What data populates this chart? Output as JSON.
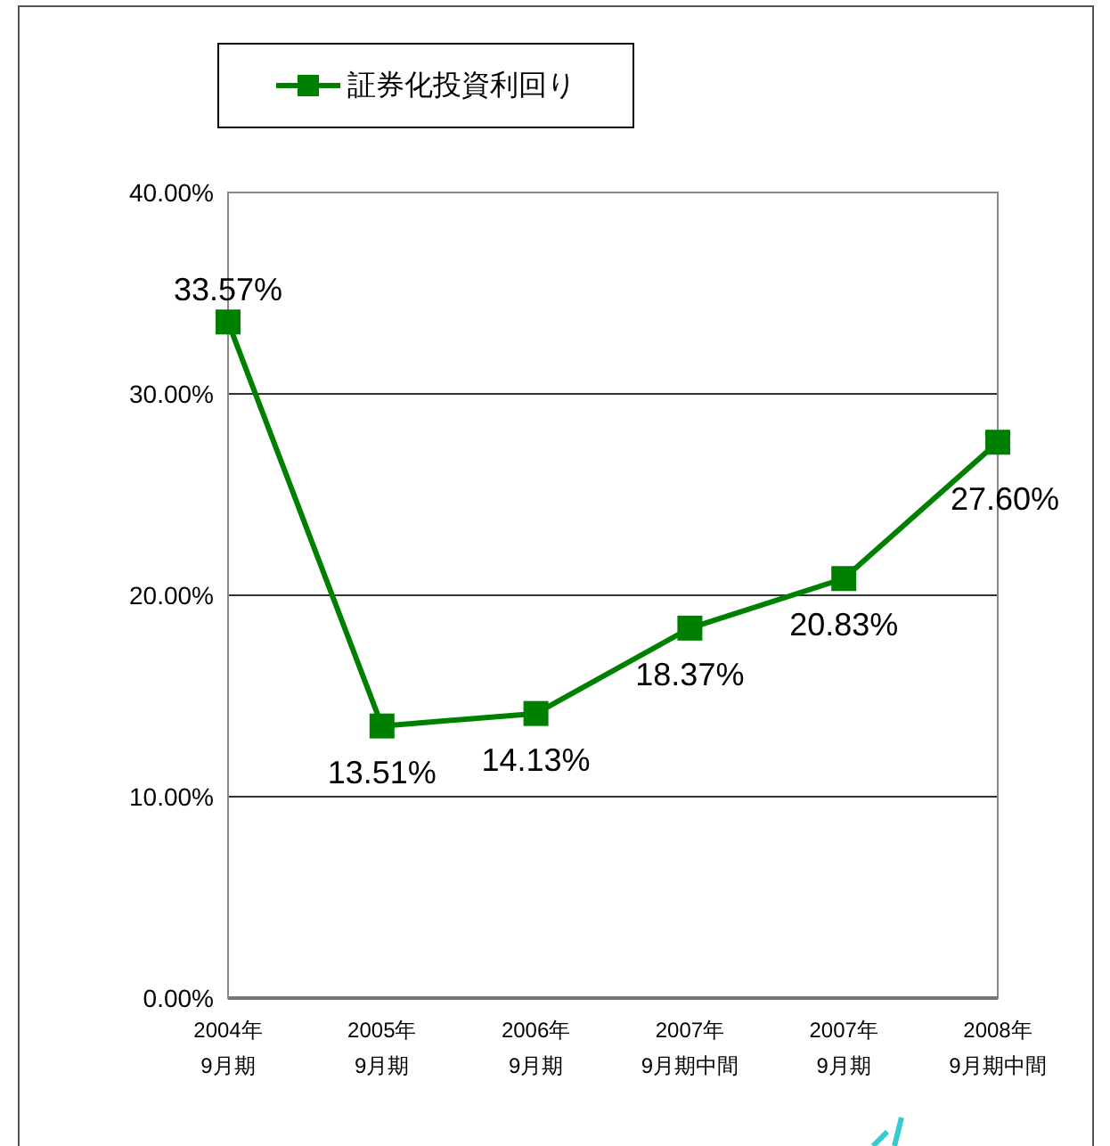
{
  "chart_data": {
    "type": "line",
    "categories": [
      "2004年\n9月期",
      "2005年\n9月期",
      "2006年\n9月期",
      "2007年\n9月期中間",
      "2007年\n9月期",
      "2008年\n9月期中間"
    ],
    "series": [
      {
        "name": "証券化投資利回り",
        "color": "#008000",
        "values": [
          33.57,
          13.51,
          14.13,
          18.37,
          20.83,
          27.6
        ]
      }
    ],
    "value_labels": [
      "33.57%",
      "13.51%",
      "14.13%",
      "18.37%",
      "20.83%",
      "27.60%"
    ],
    "ylim": [
      0,
      40
    ],
    "yticks": [
      {
        "value": 0,
        "label": "0.00%"
      },
      {
        "value": 10,
        "label": "10.00%"
      },
      {
        "value": 20,
        "label": "20.00%"
      },
      {
        "value": 30,
        "label": "30.00%"
      },
      {
        "value": 40,
        "label": "40.00%"
      }
    ],
    "grid": "y",
    "legend": "top",
    "marker": "square",
    "line_style": "solid"
  }
}
